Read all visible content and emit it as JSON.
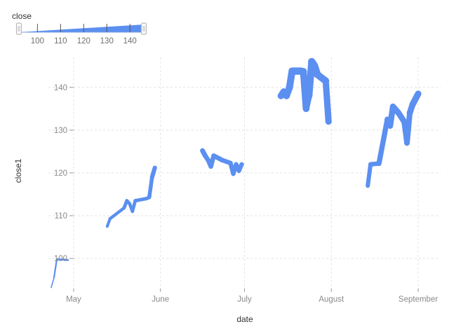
{
  "chart_data": {
    "type": "line",
    "xlabel": "date",
    "ylabel": "close1",
    "x_type": "date",
    "x_ticks": [
      {
        "date": "2014-05-01",
        "label": "May"
      },
      {
        "date": "2014-06-01",
        "label": "June"
      },
      {
        "date": "2014-07-01",
        "label": "July"
      },
      {
        "date": "2014-08-01",
        "label": "August"
      },
      {
        "date": "2014-09-01",
        "label": "September"
      }
    ],
    "xlim": [
      "2014-04-22",
      "2014-09-09"
    ],
    "y_ticks": [
      100,
      110,
      120,
      130,
      140
    ],
    "ylim": [
      93,
      147
    ],
    "grid": true,
    "color": "#5b8ff0",
    "size_legend": {
      "title": "close",
      "ticks": [
        100,
        110,
        120,
        130,
        140
      ],
      "range": [
        92,
        146
      ]
    },
    "segments": [
      {
        "points": [
          [
            "2014-04-23",
            93.2
          ],
          [
            "2014-04-24",
            95.5
          ],
          [
            "2014-04-25",
            99.8
          ],
          [
            "2014-04-28",
            99.7
          ],
          [
            "2014-04-29",
            99.6
          ]
        ]
      },
      {
        "points": [
          [
            "2014-05-13",
            107.5
          ],
          [
            "2014-05-14",
            109.3
          ],
          [
            "2014-05-19",
            111.8
          ],
          [
            "2014-05-20",
            113.5
          ],
          [
            "2014-05-21",
            112.8
          ],
          [
            "2014-05-22",
            111.0
          ],
          [
            "2014-05-23",
            113.5
          ],
          [
            "2014-05-27",
            114.0
          ],
          [
            "2014-05-28",
            114.3
          ],
          [
            "2014-05-29",
            119.0
          ],
          [
            "2014-05-30",
            121.2
          ]
        ]
      },
      {
        "points": [
          [
            "2014-06-16",
            125.2
          ],
          [
            "2014-06-17",
            124.0
          ],
          [
            "2014-06-18",
            123.0
          ],
          [
            "2014-06-19",
            121.5
          ],
          [
            "2014-06-20",
            124.0
          ],
          [
            "2014-06-23",
            123.0
          ],
          [
            "2014-06-26",
            122.3
          ],
          [
            "2014-06-27",
            119.8
          ],
          [
            "2014-06-28",
            122.0
          ],
          [
            "2014-06-29",
            120.5
          ],
          [
            "2014-06-30",
            122.0
          ]
        ]
      },
      {
        "points": [
          [
            "2014-07-14",
            138.0
          ],
          [
            "2014-07-15",
            139.0
          ],
          [
            "2014-07-16",
            138.0
          ],
          [
            "2014-07-17",
            139.8
          ],
          [
            "2014-07-18",
            143.8
          ],
          [
            "2014-07-21",
            143.8
          ],
          [
            "2014-07-22",
            143.7
          ],
          [
            "2014-07-23",
            135.0
          ],
          [
            "2014-07-24",
            138.0
          ],
          [
            "2014-07-25",
            146.0
          ],
          [
            "2014-07-26",
            145.0
          ],
          [
            "2014-07-27",
            143.0
          ],
          [
            "2014-07-30",
            141.5
          ],
          [
            "2014-07-31",
            132.0
          ]
        ]
      },
      {
        "points": [
          [
            "2014-08-14",
            117.0
          ],
          [
            "2014-08-15",
            122.0
          ],
          [
            "2014-08-18",
            122.2
          ],
          [
            "2014-08-21",
            132.5
          ],
          [
            "2014-08-22",
            131.0
          ],
          [
            "2014-08-23",
            135.5
          ],
          [
            "2014-08-25",
            134.0
          ],
          [
            "2014-08-27",
            132.0
          ],
          [
            "2014-08-28",
            127.0
          ],
          [
            "2014-08-29",
            134.0
          ],
          [
            "2014-08-30",
            136.0
          ],
          [
            "2014-09-01",
            138.5
          ]
        ]
      }
    ]
  }
}
